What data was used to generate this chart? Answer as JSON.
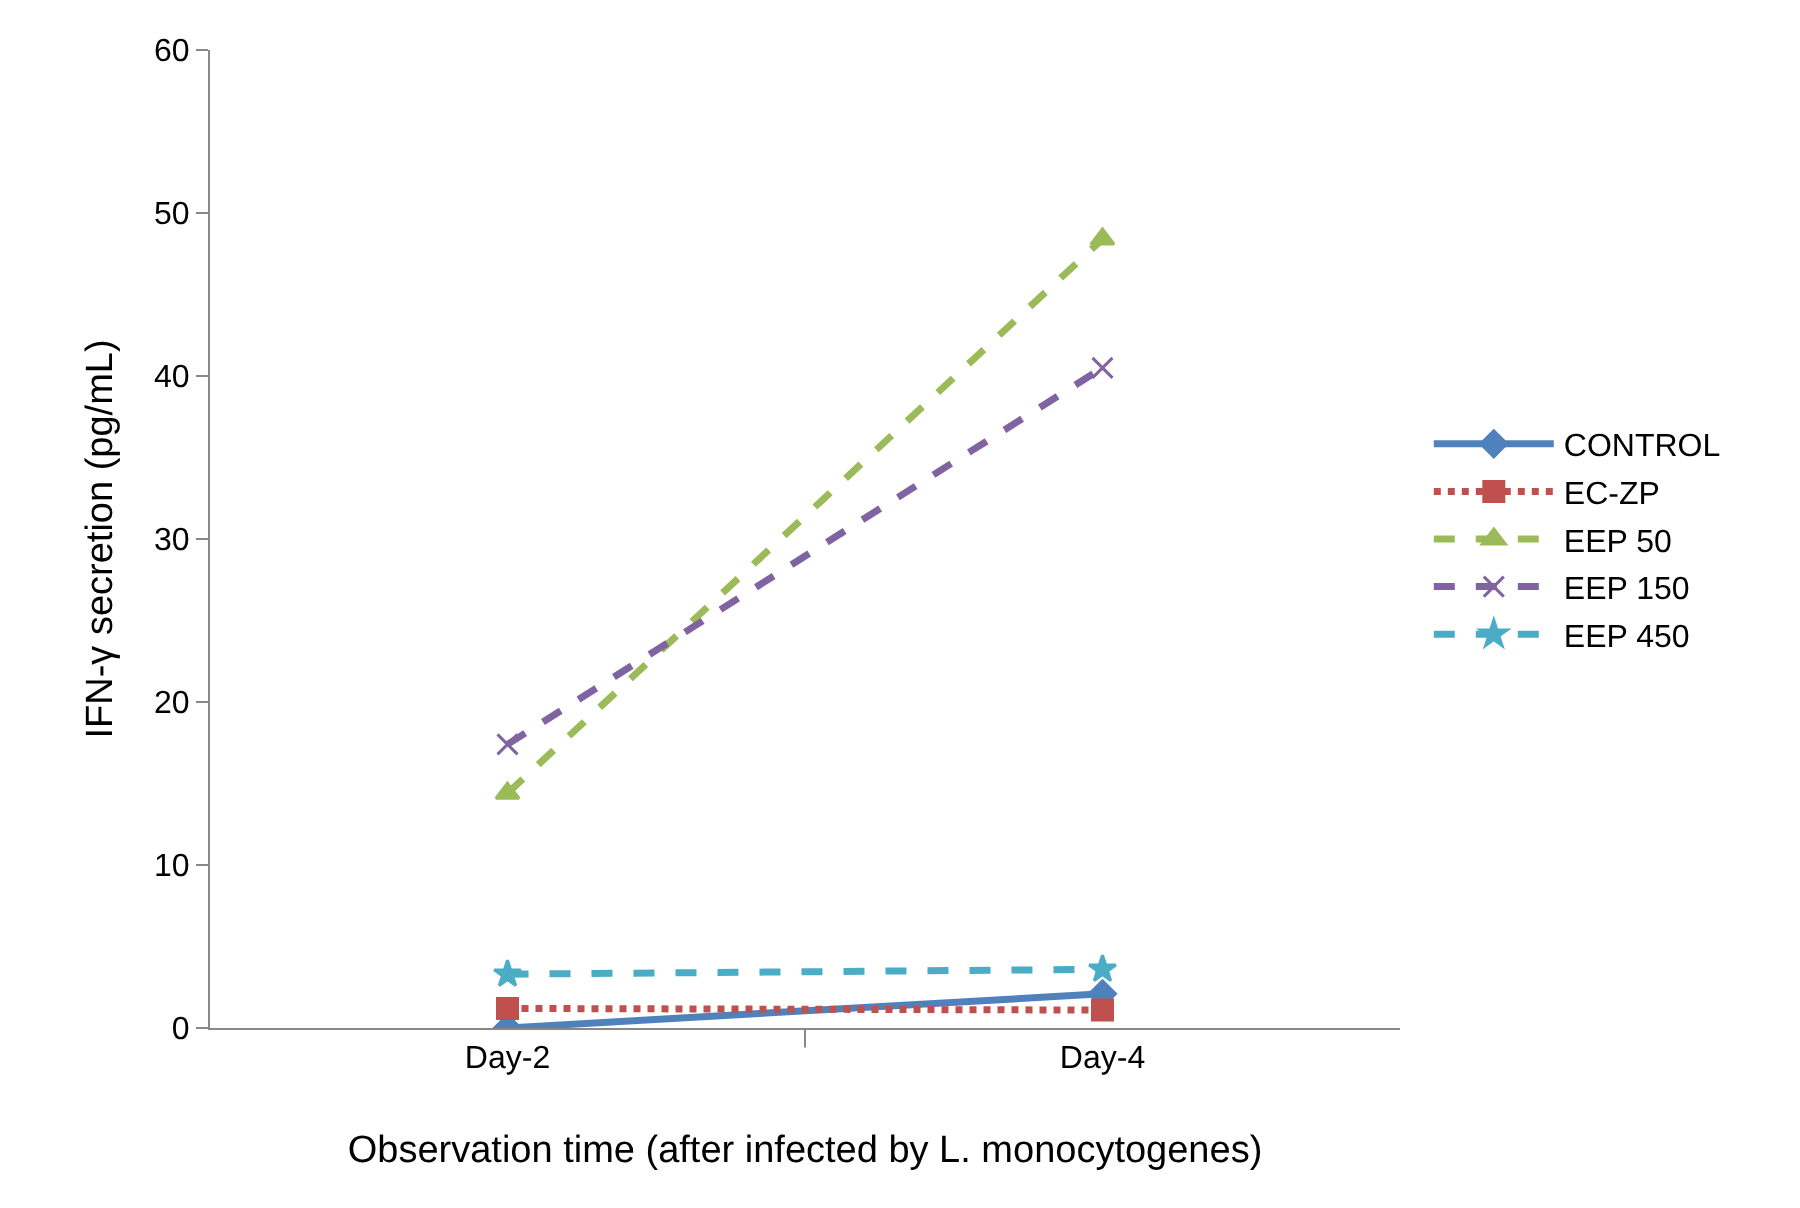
{
  "chart_data": {
    "type": "line",
    "xlabel": "Observation time (after infected by L. monocytogenes)",
    "ylabel": "IFN-γ secretion (pg/mL)",
    "categories": [
      "Day-2",
      "Day-4"
    ],
    "ylim": [
      0,
      60
    ],
    "yticks": [
      0,
      10,
      20,
      30,
      40,
      50,
      60
    ],
    "grid": false,
    "legend": "right",
    "series": [
      {
        "name": "CONTROL",
        "color": "#4f81bd",
        "values": [
          0,
          2.1
        ],
        "marker": "diamond",
        "line_style": "solid"
      },
      {
        "name": "EC-ZP",
        "color": "#c0504d",
        "values": [
          1.2,
          1.1
        ],
        "marker": "square",
        "line_style": "dotted"
      },
      {
        "name": "EEP 50",
        "color": "#9bbb59",
        "values": [
          14.4,
          48.4
        ],
        "marker": "triangle",
        "line_style": "dashed"
      },
      {
        "name": "EEP 150",
        "color": "#8064a2",
        "values": [
          17.4,
          40.5
        ],
        "marker": "cross",
        "line_style": "dashed"
      },
      {
        "name": "EEP 450",
        "color": "#4bacc6",
        "values": [
          3.3,
          3.6
        ],
        "marker": "star",
        "line_style": "dashed"
      }
    ]
  }
}
